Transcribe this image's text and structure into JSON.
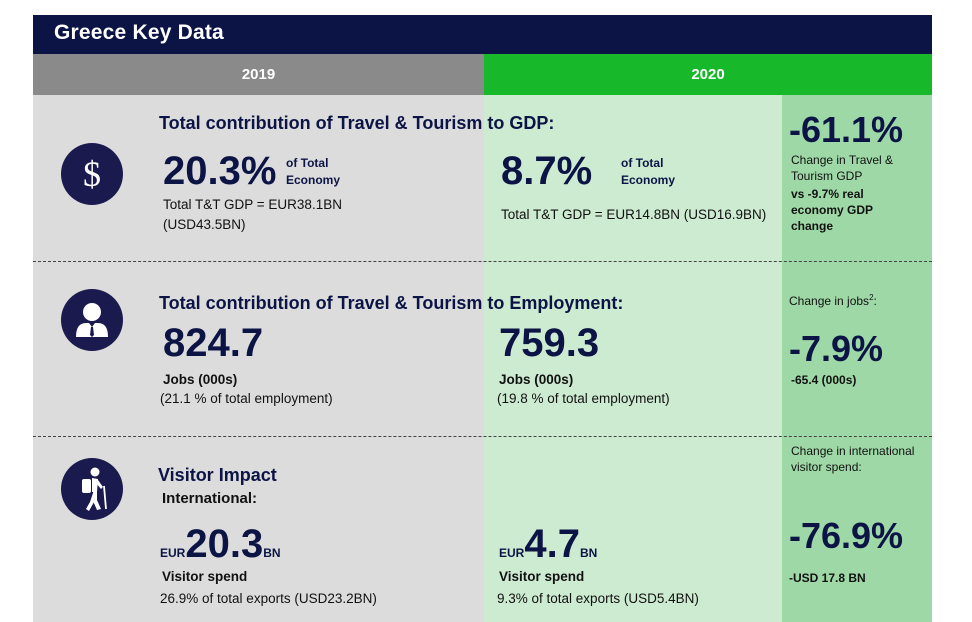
{
  "title": "Greece Key Data",
  "headers": {
    "y2019": "2019",
    "y2020": "2020"
  },
  "gdp": {
    "title": "Total contribution of Travel & Tourism to GDP:",
    "v2019": "20.3%",
    "unit2019": "of Total Economy",
    "detail2019_l1": "Total T&T GDP = EUR38.1BN",
    "detail2019_l2": "(USD43.5BN)",
    "v2020": "8.7%",
    "unit2020": "of Total Economy",
    "detail2020": "Total T&T GDP = EUR14.8BN (USD16.9BN)",
    "change": "-61.1%",
    "change_desc": "Change in Travel & Tourism GDP",
    "change_vs": "vs -9.7% real economy GDP change"
  },
  "employment": {
    "title": "Total contribution of Travel & Tourism to Employment:",
    "v2019": "824.7",
    "label2019": "Jobs (000s)",
    "pct2019": "(21.1 % of total employment)",
    "v2020": "759.3",
    "label2020": "Jobs (000s)",
    "pct2020": "(19.8 % of total employment)",
    "change_label": "Change in jobs",
    "change_sup": "2",
    "change_colon": ":",
    "change": "-7.9%",
    "change_abs": "-65.4 (000s)"
  },
  "visitor": {
    "title": "Visitor Impact",
    "subtitle": "International:",
    "eur": "EUR",
    "bn": "BN",
    "v2019": "20.3",
    "label2019": "Visitor spend",
    "pct2019": "26.9% of total exports (USD23.2BN)",
    "v2020": "4.7",
    "label2020": "Visitor spend",
    "pct2020": "9.3% of total exports (USD5.4BN)",
    "change_label": "Change in international visitor spend:",
    "change": "-76.9%",
    "change_abs": "-USD 17.8 BN"
  },
  "icons": {
    "gdp": "dollar-icon",
    "employment": "businessman-icon",
    "visitor": "hiker-icon"
  },
  "colors": {
    "navy": "#0c1445",
    "grey_header": "#8a8a8a",
    "green_header": "#17b82a",
    "green_light": "#cdebd1",
    "green_mid": "#9ed8a6"
  }
}
